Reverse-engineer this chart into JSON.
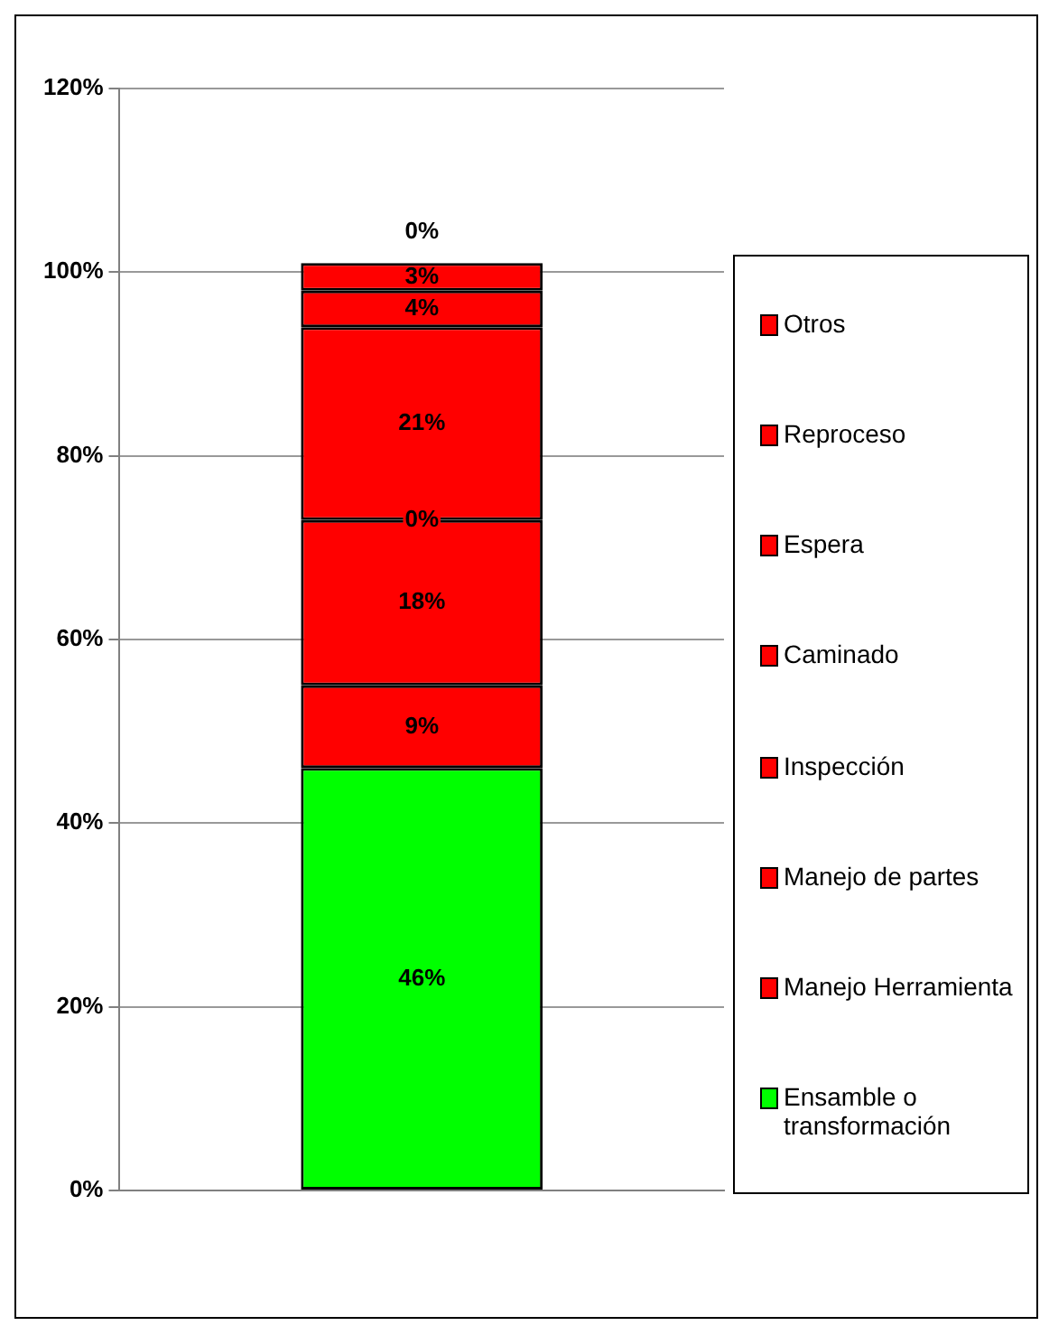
{
  "chart_data": {
    "type": "bar",
    "stacked": true,
    "categories": [
      null
    ],
    "series": [
      {
        "name": "Ensamble o transformación",
        "color": "#00ff00",
        "values": [
          46
        ],
        "value_labels": [
          "46%"
        ]
      },
      {
        "name": "Manejo Herramienta",
        "color": "#ff0000",
        "values": [
          9
        ],
        "value_labels": [
          "9%"
        ]
      },
      {
        "name": "Manejo de partes",
        "color": "#ff0000",
        "values": [
          18
        ],
        "value_labels": [
          "18%"
        ]
      },
      {
        "name": "Inspección",
        "color": "#ff0000",
        "values": [
          0
        ],
        "value_labels": [
          "0%"
        ]
      },
      {
        "name": "Caminado",
        "color": "#ff0000",
        "values": [
          21
        ],
        "value_labels": [
          "21%"
        ]
      },
      {
        "name": "Espera",
        "color": "#ff0000",
        "values": [
          4
        ],
        "value_labels": [
          "4%"
        ]
      },
      {
        "name": "Reproceso",
        "color": "#ff0000",
        "values": [
          3
        ],
        "value_labels": [
          "3%"
        ]
      },
      {
        "name": "Otros",
        "color": "#ff0000",
        "values": [
          0
        ],
        "value_labels": [
          "0%"
        ]
      }
    ],
    "ylim": [
      0,
      120
    ],
    "yticks": [
      {
        "value": 0,
        "label": "0%"
      },
      {
        "value": 20,
        "label": "20%"
      },
      {
        "value": 40,
        "label": "40%"
      },
      {
        "value": 60,
        "label": "60%"
      },
      {
        "value": 80,
        "label": "80%"
      },
      {
        "value": 100,
        "label": "100%"
      },
      {
        "value": 120,
        "label": "120%"
      }
    ],
    "grid": "y",
    "legend": "right"
  }
}
